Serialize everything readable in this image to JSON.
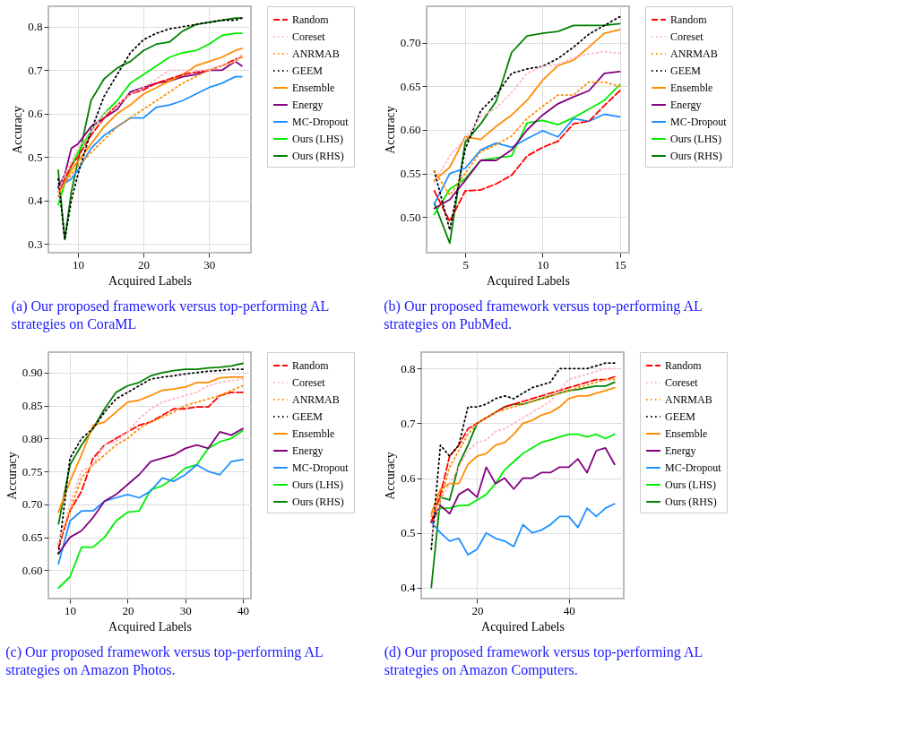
{
  "chart_data": [
    {
      "type": "line",
      "title": "(a) Our proposed framework versus top-performing AL strategies on CoraML",
      "xlabel": "Acquired Labels",
      "ylabel": "Accuracy",
      "xlim": [
        5.5,
        36.4
      ],
      "xticks": [
        10,
        20,
        30
      ],
      "ylim": [
        0.28,
        0.847
      ],
      "yticks": [
        0.3,
        0.4,
        0.5,
        0.6,
        0.7,
        0.8
      ],
      "grid": true,
      "legend": "right",
      "x": [
        7,
        8,
        9,
        10,
        12,
        14,
        16,
        18,
        20,
        22,
        24,
        26,
        28,
        30,
        32,
        34,
        35
      ],
      "series": [
        {
          "name": "Random",
          "color": "#ff0000",
          "line_style": "dashed",
          "values": [
            0.42,
            0.45,
            0.48,
            0.5,
            0.55,
            0.59,
            0.62,
            0.645,
            0.655,
            0.67,
            0.68,
            0.69,
            0.695,
            0.7,
            0.71,
            0.725,
            0.73
          ]
        },
        {
          "name": "Coreset",
          "color": "#ffb6c1",
          "line_style": "dotted",
          "values": [
            0.42,
            0.46,
            0.49,
            0.52,
            0.56,
            0.6,
            0.62,
            0.645,
            0.66,
            0.68,
            0.7,
            0.7,
            0.7,
            0.7,
            0.71,
            0.72,
            0.735
          ]
        },
        {
          "name": "ANRMAB",
          "color": "#ff8c00",
          "line_style": "dotted",
          "values": [
            0.41,
            0.44,
            0.46,
            0.48,
            0.51,
            0.54,
            0.57,
            0.59,
            0.61,
            0.63,
            0.65,
            0.67,
            0.685,
            0.7,
            0.71,
            0.72,
            0.73
          ]
        },
        {
          "name": "GEEM",
          "color": "#000000",
          "line_style": "dotted",
          "values": [
            0.45,
            0.31,
            0.4,
            0.46,
            0.56,
            0.64,
            0.69,
            0.74,
            0.77,
            0.785,
            0.795,
            0.8,
            0.805,
            0.81,
            0.815,
            0.815,
            0.82
          ]
        },
        {
          "name": "Ensemble",
          "color": "#ff8c00",
          "line_style": "solid",
          "values": [
            0.42,
            0.44,
            0.47,
            0.49,
            0.53,
            0.57,
            0.6,
            0.62,
            0.645,
            0.66,
            0.675,
            0.69,
            0.71,
            0.72,
            0.73,
            0.745,
            0.75
          ]
        },
        {
          "name": "Energy",
          "color": "#800080",
          "line_style": "solid",
          "values": [
            0.43,
            0.46,
            0.52,
            0.53,
            0.57,
            0.59,
            0.61,
            0.65,
            0.66,
            0.67,
            0.675,
            0.685,
            0.69,
            0.7,
            0.7,
            0.72,
            0.71
          ]
        },
        {
          "name": "MC-Dropout",
          "color": "#1e90ff",
          "line_style": "solid",
          "values": [
            0.43,
            0.44,
            0.45,
            0.47,
            0.52,
            0.55,
            0.57,
            0.59,
            0.59,
            0.615,
            0.62,
            0.63,
            0.645,
            0.66,
            0.67,
            0.685,
            0.685
          ]
        },
        {
          "name": "Ours (LHS)",
          "color": "#00ee00",
          "line_style": "solid",
          "values": [
            0.39,
            0.44,
            0.48,
            0.51,
            0.56,
            0.6,
            0.63,
            0.67,
            0.69,
            0.71,
            0.73,
            0.74,
            0.745,
            0.76,
            0.78,
            0.785,
            0.785
          ]
        },
        {
          "name": "Ours (RHS)",
          "color": "#008000",
          "line_style": "solid",
          "values": [
            0.47,
            0.31,
            0.42,
            0.49,
            0.63,
            0.68,
            0.705,
            0.72,
            0.745,
            0.76,
            0.765,
            0.79,
            0.805,
            0.81,
            0.815,
            0.82,
            0.82
          ]
        }
      ]
    },
    {
      "type": "line",
      "title": "(b) Our proposed framework versus top-performing AL strategies on PubMed.",
      "xlabel": "Acquired Labels",
      "ylabel": "Accuracy",
      "xlim": [
        2.5,
        15.6
      ],
      "xticks": [
        5,
        10,
        15
      ],
      "ylim": [
        0.459,
        0.742
      ],
      "yticks": [
        {
          "value": 0.5,
          "label": "0.50"
        },
        {
          "value": 0.55,
          "label": "0.55"
        },
        {
          "value": 0.6,
          "label": "0.60"
        },
        {
          "value": 0.65,
          "label": "0.65"
        },
        {
          "value": 0.7,
          "label": "0.70"
        }
      ],
      "grid": true,
      "legend": "right",
      "x": [
        3,
        4,
        5,
        6,
        7,
        8,
        9,
        10,
        11,
        12,
        13,
        14,
        15
      ],
      "series": [
        {
          "name": "Random",
          "color": "#ff0000",
          "line_style": "dashed",
          "values": [
            0.53,
            0.495,
            0.53,
            0.531,
            0.538,
            0.548,
            0.57,
            0.58,
            0.587,
            0.607,
            0.61,
            0.628,
            0.645
          ]
        },
        {
          "name": "Coreset",
          "color": "#ffb6c1",
          "line_style": "dotted",
          "values": [
            0.54,
            0.57,
            0.59,
            0.615,
            0.625,
            0.643,
            0.665,
            0.673,
            0.675,
            0.683,
            0.687,
            0.69,
            0.688
          ]
        },
        {
          "name": "ANRMAB",
          "color": "#ff8c00",
          "line_style": "dotted",
          "values": [
            0.553,
            0.525,
            0.55,
            0.575,
            0.583,
            0.593,
            0.613,
            0.627,
            0.64,
            0.64,
            0.655,
            0.655,
            0.65
          ]
        },
        {
          "name": "GEEM",
          "color": "#000000",
          "line_style": "dotted",
          "values": [
            0.553,
            0.485,
            0.578,
            0.622,
            0.64,
            0.665,
            0.67,
            0.673,
            0.682,
            0.695,
            0.71,
            0.72,
            0.73
          ]
        },
        {
          "name": "Ensemble",
          "color": "#ff8c00",
          "line_style": "solid",
          "values": [
            0.542,
            0.557,
            0.592,
            0.589,
            0.604,
            0.617,
            0.634,
            0.657,
            0.674,
            0.68,
            0.695,
            0.711,
            0.715
          ]
        },
        {
          "name": "Energy",
          "color": "#800080",
          "line_style": "solid",
          "values": [
            0.51,
            0.52,
            0.542,
            0.565,
            0.565,
            0.577,
            0.6,
            0.617,
            0.63,
            0.638,
            0.645,
            0.665,
            0.667
          ]
        },
        {
          "name": "MC-Dropout",
          "color": "#1e90ff",
          "line_style": "solid",
          "values": [
            0.515,
            0.55,
            0.556,
            0.577,
            0.585,
            0.58,
            0.59,
            0.599,
            0.592,
            0.613,
            0.61,
            0.618,
            0.615
          ]
        },
        {
          "name": "Ours (LHS)",
          "color": "#00ee00",
          "line_style": "solid",
          "values": [
            0.503,
            0.532,
            0.544,
            0.565,
            0.568,
            0.57,
            0.608,
            0.611,
            0.606,
            0.614,
            0.624,
            0.634,
            0.652
          ]
        },
        {
          "name": "Ours (RHS)",
          "color": "#008000",
          "line_style": "solid",
          "values": [
            0.516,
            0.47,
            0.586,
            0.607,
            0.633,
            0.689,
            0.708,
            0.711,
            0.713,
            0.72,
            0.72,
            0.72,
            0.722
          ]
        }
      ]
    },
    {
      "type": "line",
      "title": "(c) Our proposed framework versus top-performing AL strategies on Amazon Photos.",
      "xlabel": "Acquired Labels",
      "ylabel": "Accuracy",
      "xlim": [
        6.25,
        41.4
      ],
      "xticks": [
        10,
        20,
        30,
        40
      ],
      "ylim": [
        0.557,
        0.931
      ],
      "yticks": [
        {
          "value": 0.6,
          "label": "0.60"
        },
        {
          "value": 0.65,
          "label": "0.65"
        },
        {
          "value": 0.7,
          "label": "0.70"
        },
        {
          "value": 0.75,
          "label": "0.75"
        },
        {
          "value": 0.8,
          "label": "0.80"
        },
        {
          "value": 0.85,
          "label": "0.85"
        },
        {
          "value": 0.9,
          "label": "0.90"
        }
      ],
      "grid": true,
      "legend": "right",
      "x": [
        8,
        10,
        12,
        14,
        16,
        18,
        20,
        22,
        24,
        26,
        28,
        30,
        32,
        34,
        36,
        38,
        40
      ],
      "series": [
        {
          "name": "Random",
          "color": "#ff0000",
          "line_style": "dashed",
          "values": [
            0.635,
            0.69,
            0.72,
            0.77,
            0.79,
            0.8,
            0.81,
            0.82,
            0.825,
            0.835,
            0.845,
            0.845,
            0.848,
            0.848,
            0.865,
            0.87,
            0.87
          ]
        },
        {
          "name": "Coreset",
          "color": "#ffb6c1",
          "line_style": "dotted",
          "values": [
            0.64,
            0.7,
            0.75,
            0.76,
            0.79,
            0.795,
            0.81,
            0.83,
            0.845,
            0.855,
            0.86,
            0.865,
            0.87,
            0.88,
            0.885,
            0.888,
            0.89
          ]
        },
        {
          "name": "ANRMAB",
          "color": "#ff8c00",
          "line_style": "dotted",
          "values": [
            0.64,
            0.69,
            0.74,
            0.76,
            0.775,
            0.79,
            0.8,
            0.815,
            0.825,
            0.832,
            0.84,
            0.85,
            0.855,
            0.86,
            0.865,
            0.873,
            0.88
          ]
        },
        {
          "name": "GEEM",
          "color": "#000000",
          "line_style": "dotted",
          "values": [
            0.625,
            0.77,
            0.8,
            0.815,
            0.84,
            0.86,
            0.87,
            0.88,
            0.89,
            0.893,
            0.895,
            0.898,
            0.9,
            0.902,
            0.903,
            0.905,
            0.905
          ]
        },
        {
          "name": "Ensemble",
          "color": "#ff8c00",
          "line_style": "solid",
          "values": [
            0.688,
            0.735,
            0.775,
            0.82,
            0.825,
            0.84,
            0.855,
            0.858,
            0.865,
            0.873,
            0.875,
            0.878,
            0.885,
            0.885,
            0.892,
            0.893,
            0.893
          ]
        },
        {
          "name": "Energy",
          "color": "#800080",
          "line_style": "solid",
          "values": [
            0.625,
            0.65,
            0.66,
            0.68,
            0.705,
            0.715,
            0.73,
            0.745,
            0.765,
            0.77,
            0.775,
            0.785,
            0.79,
            0.785,
            0.81,
            0.805,
            0.815
          ]
        },
        {
          "name": "MC-Dropout",
          "color": "#1e90ff",
          "line_style": "solid",
          "values": [
            0.61,
            0.675,
            0.69,
            0.69,
            0.705,
            0.71,
            0.715,
            0.71,
            0.72,
            0.74,
            0.735,
            0.745,
            0.76,
            0.75,
            0.745,
            0.765,
            0.768
          ]
        },
        {
          "name": "Ours (LHS)",
          "color": "#00ee00",
          "line_style": "solid",
          "values": [
            0.573,
            0.59,
            0.635,
            0.635,
            0.65,
            0.675,
            0.688,
            0.69,
            0.722,
            0.728,
            0.74,
            0.755,
            0.76,
            0.785,
            0.795,
            0.8,
            0.812
          ]
        },
        {
          "name": "Ours (RHS)",
          "color": "#008000",
          "line_style": "solid",
          "values": [
            0.67,
            0.76,
            0.79,
            0.815,
            0.845,
            0.87,
            0.88,
            0.885,
            0.895,
            0.9,
            0.903,
            0.905,
            0.905,
            0.907,
            0.908,
            0.91,
            0.914
          ]
        }
      ]
    },
    {
      "type": "line",
      "title": "(d) Our proposed framework versus top-performing AL strategies on Amazon Computers.",
      "xlabel": "Acquired Labels",
      "ylabel": "Accuracy",
      "xlim": [
        7.8,
        52
      ],
      "xticks": [
        20,
        40
      ],
      "ylim": [
        0.38,
        0.83
      ],
      "yticks": [
        0.4,
        0.5,
        0.6,
        0.7,
        0.8
      ],
      "grid": true,
      "legend": "right",
      "x": [
        10,
        12,
        14,
        16,
        18,
        20,
        22,
        24,
        26,
        28,
        30,
        32,
        34,
        36,
        38,
        40,
        42,
        44,
        46,
        48,
        50
      ],
      "series": [
        {
          "name": "Random",
          "color": "#ff0000",
          "line_style": "dashed",
          "values": [
            0.52,
            0.57,
            0.64,
            0.66,
            0.69,
            0.7,
            0.71,
            0.72,
            0.73,
            0.735,
            0.74,
            0.745,
            0.75,
            0.755,
            0.76,
            0.765,
            0.77,
            0.775,
            0.78,
            0.78,
            0.785
          ]
        },
        {
          "name": "Coreset",
          "color": "#ffb6c1",
          "line_style": "dotted",
          "values": [
            0.49,
            0.56,
            0.59,
            0.62,
            0.65,
            0.665,
            0.67,
            0.685,
            0.69,
            0.7,
            0.71,
            0.72,
            0.73,
            0.74,
            0.76,
            0.78,
            0.785,
            0.79,
            0.795,
            0.8,
            0.8
          ]
        },
        {
          "name": "ANRMAB",
          "color": "#ff8c00",
          "line_style": "dotted",
          "values": [
            0.53,
            0.56,
            0.62,
            0.65,
            0.68,
            0.7,
            0.71,
            0.72,
            0.725,
            0.73,
            0.735,
            0.74,
            0.745,
            0.75,
            0.755,
            0.76,
            0.765,
            0.77,
            0.775,
            0.78,
            0.78
          ]
        },
        {
          "name": "GEEM",
          "color": "#000000",
          "line_style": "dotted",
          "values": [
            0.47,
            0.66,
            0.64,
            0.66,
            0.73,
            0.73,
            0.735,
            0.745,
            0.75,
            0.745,
            0.755,
            0.765,
            0.77,
            0.775,
            0.8,
            0.8,
            0.8,
            0.8,
            0.805,
            0.81,
            0.81
          ]
        },
        {
          "name": "Ensemble",
          "color": "#ff8c00",
          "line_style": "solid",
          "values": [
            0.535,
            0.58,
            0.59,
            0.59,
            0.625,
            0.64,
            0.645,
            0.66,
            0.665,
            0.68,
            0.7,
            0.705,
            0.715,
            0.72,
            0.73,
            0.745,
            0.75,
            0.75,
            0.755,
            0.76,
            0.765
          ]
        },
        {
          "name": "Energy",
          "color": "#800080",
          "line_style": "solid",
          "values": [
            0.52,
            0.55,
            0.535,
            0.57,
            0.58,
            0.565,
            0.62,
            0.59,
            0.6,
            0.58,
            0.6,
            0.6,
            0.61,
            0.61,
            0.62,
            0.62,
            0.635,
            0.61,
            0.65,
            0.655,
            0.625
          ]
        },
        {
          "name": "MC-Dropout",
          "color": "#1e90ff",
          "line_style": "solid",
          "values": [
            0.52,
            0.5,
            0.485,
            0.49,
            0.46,
            0.47,
            0.5,
            0.49,
            0.485,
            0.475,
            0.515,
            0.5,
            0.505,
            0.515,
            0.53,
            0.53,
            0.51,
            0.545,
            0.53,
            0.545,
            0.553
          ]
        },
        {
          "name": "Ours (LHS)",
          "color": "#00ee00",
          "line_style": "solid",
          "values": [
            0.52,
            0.545,
            0.545,
            0.55,
            0.55,
            0.56,
            0.57,
            0.59,
            0.615,
            0.63,
            0.645,
            0.655,
            0.665,
            0.67,
            0.675,
            0.68,
            0.68,
            0.675,
            0.68,
            0.672,
            0.68
          ]
        },
        {
          "name": "Ours (RHS)",
          "color": "#008000",
          "line_style": "solid",
          "values": [
            0.4,
            0.565,
            0.56,
            0.625,
            0.66,
            0.7,
            0.71,
            0.72,
            0.73,
            0.735,
            0.735,
            0.74,
            0.745,
            0.75,
            0.755,
            0.76,
            0.762,
            0.765,
            0.768,
            0.768,
            0.775
          ]
        }
      ]
    }
  ]
}
